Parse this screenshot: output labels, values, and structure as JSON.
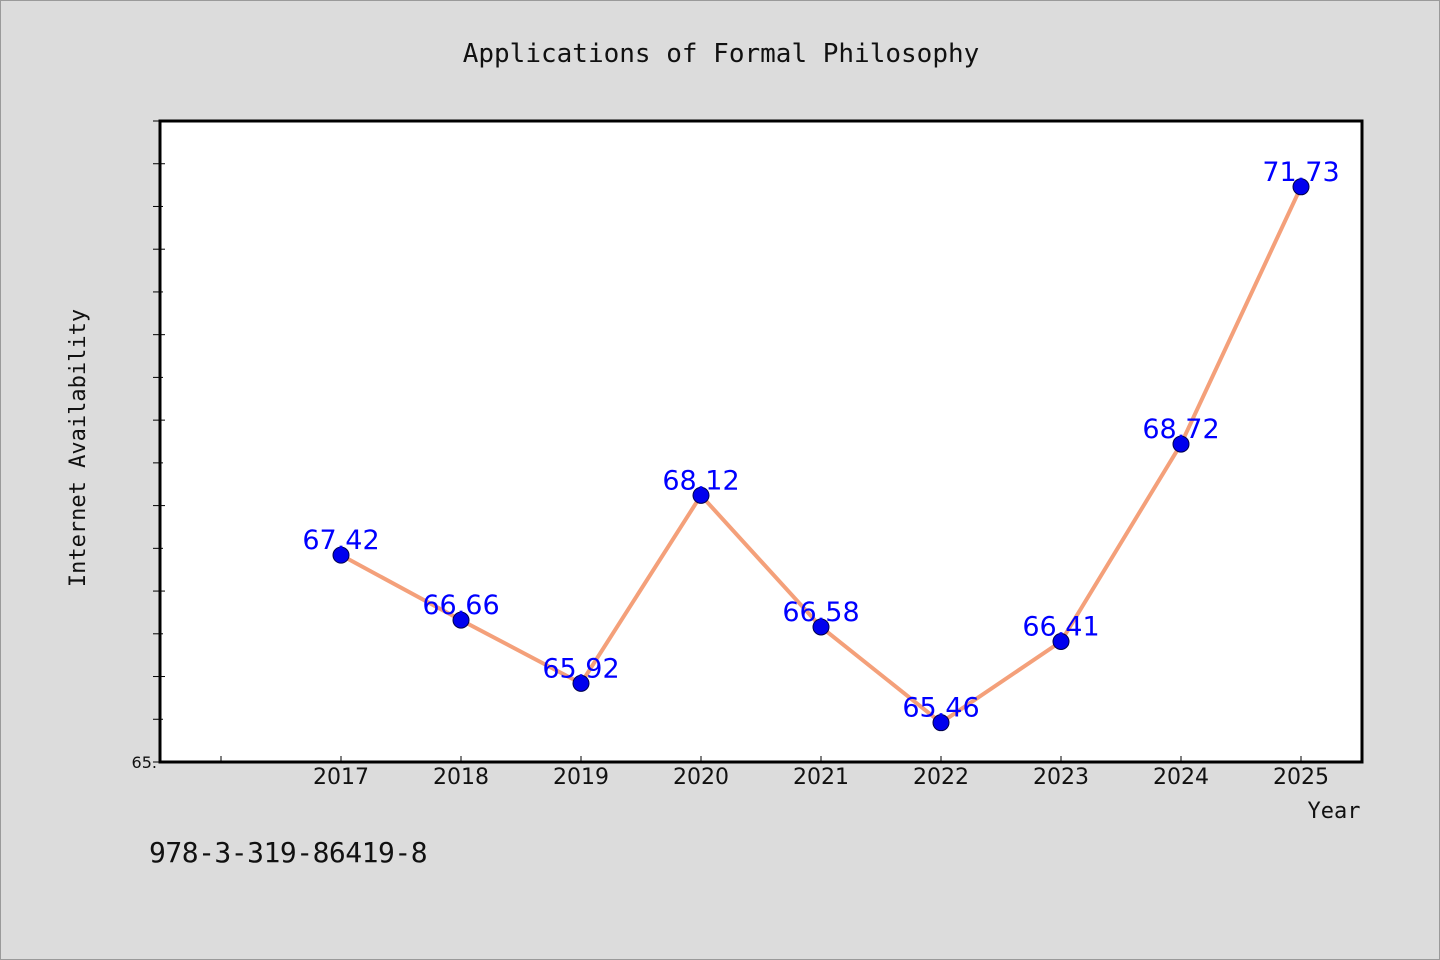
{
  "chart_data": {
    "type": "line",
    "title": "Applications of Formal Philosophy",
    "xlabel": "Year",
    "ylabel": "Internet Availability",
    "categories": [
      "2017",
      "2018",
      "2019",
      "2020",
      "2021",
      "2022",
      "2023",
      "2024",
      "2025"
    ],
    "series": [
      {
        "values": [
          67.42,
          66.66,
          65.92,
          68.12,
          66.58,
          65.46,
          66.41,
          68.72,
          71.73
        ],
        "line_color": "#f4a07a",
        "marker_color": "#0000ee",
        "label_color": "#0000ff"
      }
    ],
    "data_labels": [
      "67.42",
      "66.66",
      "65.92",
      "68.12",
      "66.58",
      "65.46",
      "66.41",
      "68.72",
      "71.73"
    ],
    "y_tick_labels": [
      "65."
    ],
    "ylim": [
      65,
      72.5
    ],
    "grid": false,
    "legend": "none"
  },
  "footer": {
    "code": "978-3-319-86419-8"
  },
  "colors": {
    "background": "#dcdcdc",
    "plot_background": "#ffffff"
  }
}
